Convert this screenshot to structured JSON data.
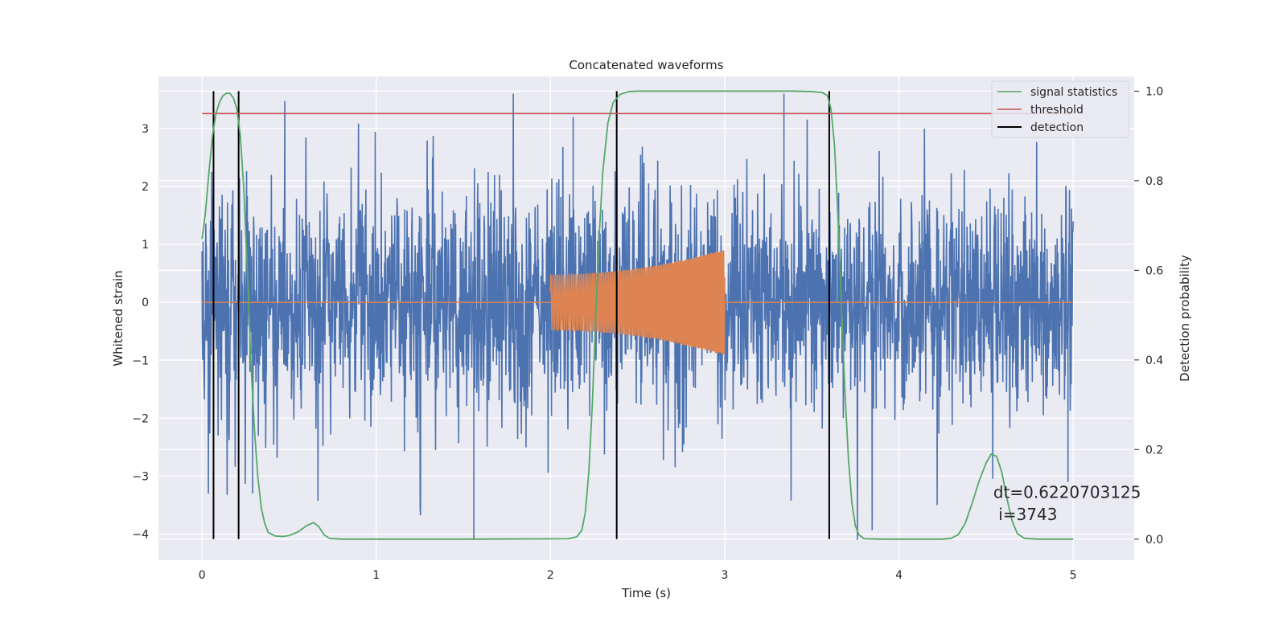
{
  "chart_data": {
    "type": "line",
    "title": "Concatenated waveforms",
    "xlabel": "Time (s)",
    "ylabel": "Whitened strain",
    "y2label": "Detection probability",
    "xlim": [
      -0.25,
      5.35
    ],
    "ylim": [
      -4.45,
      3.9
    ],
    "y2lim": [
      -0.047,
      1.033
    ],
    "xticks": [
      0,
      1,
      2,
      3,
      4,
      5
    ],
    "yticks": [
      -4,
      -3,
      -2,
      -1,
      0,
      1,
      2,
      3
    ],
    "y2ticks": [
      0.0,
      0.2,
      0.4,
      0.6,
      0.8,
      1.0
    ],
    "xtick_labels": [
      "0",
      "1",
      "2",
      "3",
      "4",
      "5"
    ],
    "ytick_labels": [
      "−4",
      "−3",
      "−2",
      "−1",
      "0",
      "1",
      "2",
      "3"
    ],
    "y2tick_labels": [
      "0.0",
      "0.2",
      "0.4",
      "0.6",
      "0.8",
      "1.0"
    ],
    "grid": true,
    "legend_position": "top-right",
    "colors": {
      "background": "#eaeaf2",
      "strain": "#4c72b0",
      "injection": "#dd8452",
      "signal_statistics": "#55a868",
      "threshold": "#c44e52",
      "detection": "#000000"
    },
    "series": [
      {
        "name": "",
        "axis": "left",
        "description_kind": "noise",
        "x_range": [
          0,
          5
        ],
        "amplitude_typical": 1.0,
        "amplitude_peak": 3.6,
        "min_value": -4.1,
        "max_value": 3.6
      },
      {
        "name": "",
        "axis": "left",
        "description_kind": "chirp",
        "x_range": [
          2.0,
          3.0
        ],
        "amplitude_start": 0.48,
        "amplitude_end": 0.92
      },
      {
        "name": "signal statistics",
        "axis": "right",
        "points": [
          [
            0.0,
            0.67
          ],
          [
            0.02,
            0.73
          ],
          [
            0.04,
            0.82
          ],
          [
            0.06,
            0.9
          ],
          [
            0.08,
            0.95
          ],
          [
            0.1,
            0.975
          ],
          [
            0.12,
            0.99
          ],
          [
            0.14,
            0.995
          ],
          [
            0.16,
            0.995
          ],
          [
            0.18,
            0.985
          ],
          [
            0.2,
            0.96
          ],
          [
            0.22,
            0.9
          ],
          [
            0.24,
            0.78
          ],
          [
            0.26,
            0.6
          ],
          [
            0.28,
            0.4
          ],
          [
            0.3,
            0.25
          ],
          [
            0.32,
            0.14
          ],
          [
            0.34,
            0.07
          ],
          [
            0.36,
            0.035
          ],
          [
            0.38,
            0.015
          ],
          [
            0.42,
            0.007
          ],
          [
            0.46,
            0.006
          ],
          [
            0.5,
            0.008
          ],
          [
            0.55,
            0.016
          ],
          [
            0.6,
            0.03
          ],
          [
            0.64,
            0.037
          ],
          [
            0.67,
            0.028
          ],
          [
            0.7,
            0.01
          ],
          [
            0.73,
            0.002
          ],
          [
            0.8,
            0.0
          ],
          [
            1.5,
            0.0
          ],
          [
            2.1,
            0.001
          ],
          [
            2.15,
            0.005
          ],
          [
            2.18,
            0.02
          ],
          [
            2.2,
            0.06
          ],
          [
            2.22,
            0.15
          ],
          [
            2.24,
            0.3
          ],
          [
            2.26,
            0.5
          ],
          [
            2.28,
            0.68
          ],
          [
            2.3,
            0.82
          ],
          [
            2.33,
            0.93
          ],
          [
            2.36,
            0.975
          ],
          [
            2.4,
            0.993
          ],
          [
            2.45,
            0.999
          ],
          [
            2.5,
            1.0
          ],
          [
            3.4,
            1.0
          ],
          [
            3.5,
            0.999
          ],
          [
            3.56,
            0.997
          ],
          [
            3.59,
            0.99
          ],
          [
            3.61,
            0.96
          ],
          [
            3.63,
            0.88
          ],
          [
            3.65,
            0.72
          ],
          [
            3.67,
            0.52
          ],
          [
            3.69,
            0.33
          ],
          [
            3.71,
            0.18
          ],
          [
            3.73,
            0.08
          ],
          [
            3.75,
            0.03
          ],
          [
            3.77,
            0.01
          ],
          [
            3.8,
            0.001
          ],
          [
            3.9,
            0.0
          ],
          [
            4.25,
            0.0
          ],
          [
            4.3,
            0.002
          ],
          [
            4.34,
            0.01
          ],
          [
            4.38,
            0.035
          ],
          [
            4.42,
            0.08
          ],
          [
            4.46,
            0.13
          ],
          [
            4.5,
            0.17
          ],
          [
            4.53,
            0.19
          ],
          [
            4.56,
            0.185
          ],
          [
            4.59,
            0.15
          ],
          [
            4.62,
            0.09
          ],
          [
            4.65,
            0.04
          ],
          [
            4.68,
            0.012
          ],
          [
            4.72,
            0.002
          ],
          [
            4.8,
            0.0
          ],
          [
            5.0,
            0.0
          ]
        ]
      },
      {
        "name": "threshold",
        "axis": "right",
        "x": [
          0,
          5
        ],
        "values": [
          0.95,
          0.95
        ]
      },
      {
        "name": "detection",
        "axis": "right",
        "x": [
          0.066,
          0.21,
          2.38,
          3.6
        ],
        "span": [
          0.0,
          1.0
        ]
      }
    ],
    "annotations": [
      {
        "text": "dt=0.6220703125",
        "x": 4.5,
        "y": 0.105
      },
      {
        "text": " i=3743",
        "x": 4.5,
        "y": 0.055
      }
    ],
    "legend": [
      "signal statistics",
      "threshold",
      "detection"
    ]
  }
}
